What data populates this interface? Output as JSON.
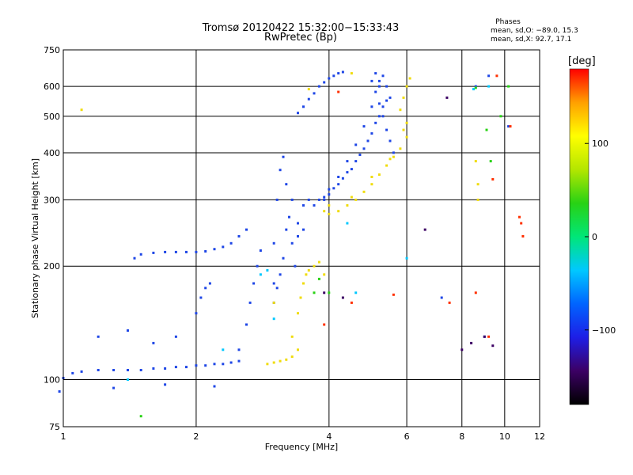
{
  "header": {
    "title_line1": "Tromsø 20120422 15:32:00−15:33:43",
    "title_line2": "RwPretec (Bp)",
    "phases_title": "Phases",
    "phases_o": "mean, sd,O: −89.0, 15.3",
    "phases_x": "mean, sd,X:  92.7, 17.1"
  },
  "colors": {
    "background": "#ffffff",
    "axes": "#000000",
    "o_mode": "#1e46e6",
    "x_mode": "#f0dc0a",
    "colorbar_stops": [
      "#000000",
      "#3c0064",
      "#1e1ee6",
      "#0064ff",
      "#00c8ff",
      "#00e678",
      "#28d214",
      "#b4e600",
      "#ffff00",
      "#ffa000",
      "#ff0000"
    ]
  },
  "chart_data": {
    "type": "scatter",
    "title": "Tromsø 20120422 15:32:00−15:33:43",
    "subtitle": "RwPretec (Bp)",
    "xlabel": "Frequency [MHz]",
    "ylabel": "Stationary phase Virtual Height [km]",
    "x_scale": "log",
    "y_scale": "log",
    "xlim": [
      1,
      12
    ],
    "ylim": [
      75,
      750
    ],
    "x_ticks": [
      1,
      2,
      4,
      6,
      8,
      10,
      12
    ],
    "x_tick_labels": [
      "1",
      "2",
      "4",
      "6",
      "8",
      "10",
      "12"
    ],
    "y_ticks": [
      75,
      100,
      200,
      300,
      400,
      500,
      600,
      750
    ],
    "y_tick_labels": [
      "75",
      "100",
      "200",
      "300",
      "400",
      "500",
      "600",
      "750"
    ],
    "grid": true,
    "colorbar": {
      "label": "[deg]",
      "range": [
        -180,
        180
      ],
      "ticks": [
        100,
        0,
        -100
      ],
      "tick_labels": [
        "100",
        "0",
        "−100"
      ]
    },
    "series": [
      {
        "color": "#1e46e6",
        "points": [
          [
            1.0,
            101
          ],
          [
            1.05,
            104
          ],
          [
            1.1,
            105
          ],
          [
            1.2,
            106
          ],
          [
            1.3,
            106
          ],
          [
            1.4,
            106
          ],
          [
            1.5,
            106
          ],
          [
            1.6,
            107
          ],
          [
            1.7,
            107
          ],
          [
            1.8,
            108
          ],
          [
            1.9,
            108
          ],
          [
            2.0,
            109
          ],
          [
            2.1,
            109
          ],
          [
            2.2,
            110
          ],
          [
            2.3,
            110
          ],
          [
            2.4,
            111
          ],
          [
            2.5,
            112
          ],
          [
            1.5,
            215
          ],
          [
            1.6,
            217
          ],
          [
            1.7,
            218
          ],
          [
            1.8,
            218
          ],
          [
            1.9,
            218
          ],
          [
            2.0,
            218
          ],
          [
            2.1,
            219
          ],
          [
            2.2,
            222
          ],
          [
            2.3,
            225
          ],
          [
            2.4,
            230
          ],
          [
            2.5,
            240
          ],
          [
            2.6,
            250
          ],
          [
            2.0,
            150
          ],
          [
            2.05,
            165
          ],
          [
            2.1,
            175
          ],
          [
            2.15,
            180
          ],
          [
            2.5,
            120
          ],
          [
            2.6,
            140
          ],
          [
            2.65,
            160
          ],
          [
            2.7,
            180
          ],
          [
            2.75,
            200
          ],
          [
            2.8,
            220
          ],
          [
            3.0,
            180
          ],
          [
            3.0,
            230
          ],
          [
            3.05,
            300
          ],
          [
            3.1,
            360
          ],
          [
            3.15,
            390
          ],
          [
            3.2,
            330
          ],
          [
            3.25,
            270
          ],
          [
            3.3,
            230
          ],
          [
            3.35,
            200
          ],
          [
            3.4,
            260
          ],
          [
            3.5,
            290
          ],
          [
            3.6,
            300
          ],
          [
            3.7,
            290
          ],
          [
            3.8,
            300
          ],
          [
            3.0,
            160
          ],
          [
            3.05,
            175
          ],
          [
            3.1,
            190
          ],
          [
            3.15,
            210
          ],
          [
            3.2,
            250
          ],
          [
            3.3,
            300
          ],
          [
            3.4,
            240
          ],
          [
            3.5,
            250
          ],
          [
            3.9,
            300
          ],
          [
            4.0,
            310
          ],
          [
            4.2,
            330
          ],
          [
            4.4,
            355
          ],
          [
            4.6,
            380
          ],
          [
            4.8,
            410
          ],
          [
            5.0,
            450
          ],
          [
            5.2,
            500
          ],
          [
            5.4,
            550
          ],
          [
            3.9,
            305
          ],
          [
            4.1,
            322
          ],
          [
            4.3,
            342
          ],
          [
            4.5,
            362
          ],
          [
            4.7,
            395
          ],
          [
            4.9,
            430
          ],
          [
            5.1,
            480
          ],
          [
            5.3,
            530
          ],
          [
            4.0,
            320
          ],
          [
            4.2,
            345
          ],
          [
            4.4,
            380
          ],
          [
            4.6,
            420
          ],
          [
            4.8,
            470
          ],
          [
            5.0,
            530
          ],
          [
            5.2,
            600
          ],
          [
            5.3,
            640
          ],
          [
            3.4,
            510
          ],
          [
            3.5,
            530
          ],
          [
            3.6,
            555
          ],
          [
            3.7,
            575
          ],
          [
            3.8,
            600
          ],
          [
            3.9,
            615
          ],
          [
            4.0,
            630
          ],
          [
            4.1,
            640
          ],
          [
            4.2,
            650
          ],
          [
            4.3,
            655
          ],
          [
            5.0,
            620
          ],
          [
            5.1,
            580
          ],
          [
            5.2,
            540
          ],
          [
            5.3,
            500
          ],
          [
            5.4,
            460
          ],
          [
            5.5,
            430
          ],
          [
            5.6,
            400
          ],
          [
            5.1,
            650
          ],
          [
            5.2,
            620
          ],
          [
            5.4,
            600
          ],
          [
            5.5,
            560
          ],
          [
            1.2,
            130
          ],
          [
            1.4,
            135
          ],
          [
            1.6,
            125
          ],
          [
            1.8,
            130
          ],
          [
            1.3,
            95
          ],
          [
            1.7,
            97
          ],
          [
            2.2,
            96
          ],
          [
            0.98,
            93
          ],
          [
            1.45,
            210
          ],
          [
            9.2,
            640
          ],
          [
            10.2,
            470
          ],
          [
            9.0,
            130
          ],
          [
            8.6,
            600
          ],
          [
            7.2,
            165
          ]
        ]
      },
      {
        "color": "#f0dc0a",
        "points": [
          [
            2.9,
            110
          ],
          [
            3.0,
            111
          ],
          [
            3.1,
            112
          ],
          [
            3.2,
            113
          ],
          [
            3.3,
            115
          ],
          [
            3.4,
            120
          ],
          [
            3.3,
            130
          ],
          [
            3.4,
            150
          ],
          [
            3.45,
            165
          ],
          [
            3.5,
            180
          ],
          [
            3.55,
            190
          ],
          [
            3.6,
            195
          ],
          [
            3.7,
            200
          ],
          [
            3.8,
            205
          ],
          [
            3.9,
            190
          ],
          [
            3.9,
            280
          ],
          [
            4.0,
            275
          ],
          [
            4.2,
            280
          ],
          [
            4.4,
            290
          ],
          [
            4.6,
            300
          ],
          [
            4.8,
            315
          ],
          [
            5.0,
            330
          ],
          [
            5.2,
            350
          ],
          [
            5.4,
            370
          ],
          [
            5.6,
            390
          ],
          [
            5.8,
            410
          ],
          [
            6.0,
            440
          ],
          [
            6.0,
            480
          ],
          [
            4.0,
            290
          ],
          [
            4.5,
            305
          ],
          [
            5.0,
            345
          ],
          [
            5.5,
            385
          ],
          [
            5.9,
            460
          ],
          [
            5.8,
            520
          ],
          [
            5.9,
            560
          ],
          [
            6.0,
            600
          ],
          [
            6.1,
            630
          ],
          [
            4.5,
            650
          ],
          [
            3.6,
            590
          ],
          [
            1.1,
            520
          ],
          [
            3.0,
            160
          ],
          [
            8.6,
            380
          ],
          [
            8.7,
            300
          ],
          [
            8.7,
            330
          ]
        ]
      },
      {
        "color": "#00c8ff",
        "points": [
          [
            1.4,
            100
          ],
          [
            2.3,
            120
          ],
          [
            2.8,
            190
          ],
          [
            3.0,
            145
          ],
          [
            4.4,
            260
          ],
          [
            4.6,
            170
          ],
          [
            8.5,
            590
          ],
          [
            9.2,
            600
          ],
          [
            6.0,
            210
          ],
          [
            2.9,
            195
          ]
        ]
      },
      {
        "color": "#28d214",
        "points": [
          [
            3.7,
            170
          ],
          [
            3.8,
            185
          ],
          [
            4.0,
            170
          ],
          [
            8.6,
            595
          ],
          [
            9.1,
            460
          ],
          [
            9.8,
            500
          ],
          [
            9.3,
            380
          ],
          [
            10.2,
            600
          ],
          [
            1.5,
            80
          ]
        ]
      },
      {
        "color": "#ff3000",
        "points": [
          [
            9.6,
            640
          ],
          [
            9.4,
            340
          ],
          [
            10.8,
            270
          ],
          [
            10.9,
            260
          ],
          [
            11.0,
            240
          ],
          [
            10.3,
            470
          ],
          [
            8.6,
            170
          ],
          [
            7.5,
            160
          ],
          [
            5.6,
            168
          ],
          [
            4.5,
            160
          ],
          [
            9.2,
            130
          ],
          [
            3.9,
            140
          ],
          [
            4.2,
            580
          ]
        ]
      },
      {
        "color": "#3c0064",
        "points": [
          [
            9.0,
            130
          ],
          [
            8.0,
            120
          ],
          [
            8.4,
            125
          ],
          [
            9.4,
            123
          ],
          [
            4.3,
            165
          ],
          [
            6.6,
            250
          ],
          [
            7.4,
            560
          ],
          [
            3.9,
            170
          ]
        ]
      }
    ]
  }
}
